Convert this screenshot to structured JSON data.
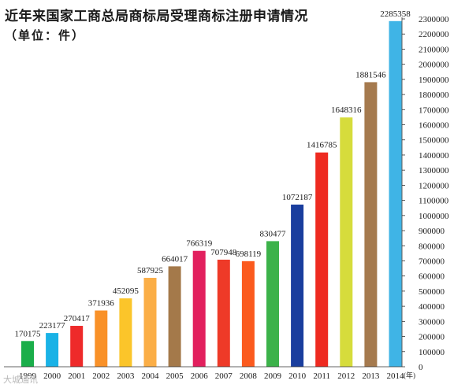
{
  "chart_data": {
    "type": "bar",
    "title": "近年来国家工商总局商标局受理商标注册申请情况",
    "subtitle": "（单位：件）",
    "x_unit": "(年)",
    "categories": [
      "1999",
      "2000",
      "2001",
      "2002",
      "2003",
      "2004",
      "2005",
      "2006",
      "2007",
      "2008",
      "2009",
      "2010",
      "2011",
      "2012",
      "2013",
      "2014"
    ],
    "values": [
      170175,
      223177,
      270417,
      371936,
      452095,
      587925,
      664017,
      766319,
      707948,
      698119,
      830477,
      1072187,
      1416785,
      1648316,
      1881546,
      2285358
    ],
    "value_labels": [
      "170175",
      "223177",
      "270417",
      "371936",
      "452095",
      "587925",
      "664017",
      "766319",
      "707948",
      "698119",
      "830477",
      "1072187",
      "1416785",
      "1648316",
      "1881546",
      "2285358"
    ],
    "colors": [
      "#1aae4a",
      "#19b2e6",
      "#ee2a2a",
      "#f99128",
      "#fbc52a",
      "#fbae46",
      "#a4794a",
      "#e2205e",
      "#ee3a28",
      "#fb5a1e",
      "#3cb24a",
      "#1a3e9e",
      "#ee2a20",
      "#d6dc3c",
      "#a57a4e",
      "#3fb4e6"
    ],
    "ylim": [
      0,
      2300000
    ],
    "y_ticks": [
      "0",
      "100000",
      "200000",
      "300000",
      "400000",
      "500000",
      "600000",
      "700000",
      "800000",
      "900000",
      "1000000",
      "1100000",
      "1200000",
      "1300000",
      "1400000",
      "1500000",
      "1600000",
      "1700000",
      "1800000",
      "1900000",
      "2000000",
      "2100000",
      "2200000",
      "2300000"
    ],
    "y_axis_position": "right",
    "grid": false,
    "legend": "none"
  },
  "watermark": "大城通讯"
}
